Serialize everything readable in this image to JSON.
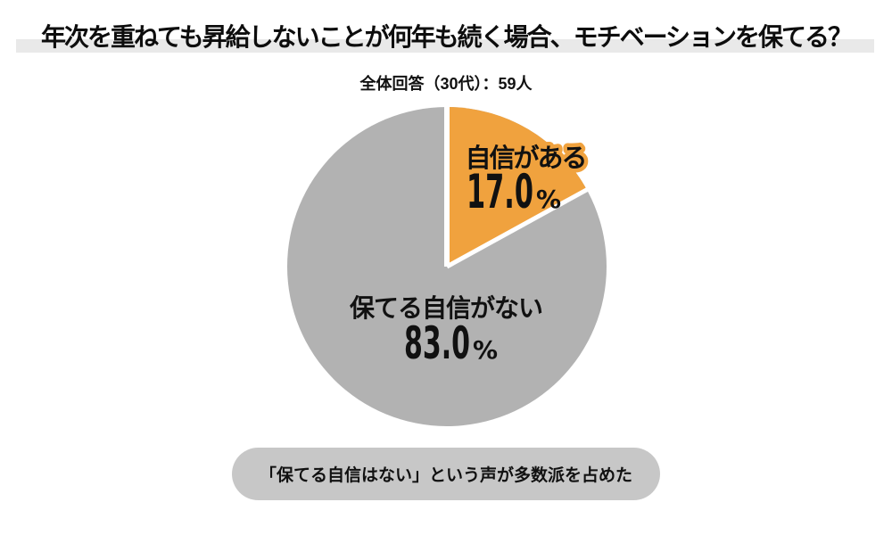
{
  "title": {
    "text": "年次を重ねても昇給しないことが何年も続く場合、モチベーションを保てる？",
    "highlight_color": "#E9E9E9"
  },
  "subtitle": {
    "text": "全体回答（30代）：59人"
  },
  "chart_data": {
    "type": "pie",
    "title": "年次を重ねても昇給しないことが何年も続く場合、モチベーションを保てる？",
    "subtitle": "全体回答（30代）：59人",
    "sample_label": "59人",
    "start_angle_deg": 0,
    "direction": "clockwise",
    "separator_color": "#FFFFFF",
    "slices": [
      {
        "label": "自信がある",
        "value": 17.0,
        "display_value": "17.0",
        "unit": "%",
        "color": "#F0A23E"
      },
      {
        "label": "保てる自信がない",
        "value": 83.0,
        "display_value": "83.0",
        "unit": "%",
        "color": "#B2B2B2"
      }
    ]
  },
  "callout": {
    "text": "「保てる自信はない」という声が多数派を占めた",
    "bg_color": "#C7C7C7"
  },
  "colors": {
    "background": "#FFFFFF",
    "text": "#111111",
    "accent_orange": "#F0A23E",
    "pie_gray": "#B2B2B2",
    "pill_gray": "#C7C7C7",
    "title_highlight_gray": "#E9E9E9"
  }
}
